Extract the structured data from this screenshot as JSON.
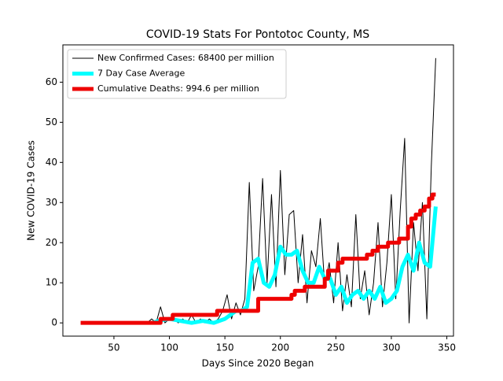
{
  "chart_data": {
    "type": "line",
    "title": "COVID-19 Stats For Pontotoc County, MS",
    "xlabel": "Days Since 2020 Began",
    "ylabel": "New COVID-19 Cases",
    "xlim": [
      4,
      356
    ],
    "ylim": [
      -3.3,
      69.3
    ],
    "xticks": [
      50,
      100,
      150,
      200,
      250,
      300,
      350
    ],
    "yticks": [
      0,
      10,
      20,
      30,
      40,
      50,
      60
    ],
    "legend": "upper left",
    "series": [
      {
        "name": "New Confirmed Cases: 68400 per million",
        "color": "#000000",
        "width": 1,
        "x": [
          80,
          84,
          88,
          92,
          96,
          100,
          104,
          108,
          112,
          116,
          120,
          124,
          128,
          132,
          136,
          140,
          144,
          148,
          152,
          156,
          160,
          164,
          168,
          172,
          176,
          180,
          184,
          188,
          192,
          196,
          200,
          204,
          208,
          212,
          216,
          220,
          224,
          228,
          232,
          236,
          240,
          244,
          248,
          252,
          256,
          260,
          264,
          268,
          272,
          276,
          280,
          284,
          288,
          292,
          296,
          300,
          304,
          308,
          312,
          316,
          320,
          324,
          328,
          332,
          336,
          340
        ],
        "values": [
          0,
          1,
          0,
          4,
          0,
          1,
          1,
          0,
          1,
          0,
          2,
          0,
          1,
          0,
          1,
          0,
          1,
          3,
          7,
          1,
          5,
          2,
          6,
          35,
          8,
          14,
          36,
          10,
          32,
          9,
          38,
          12,
          27,
          28,
          10,
          22,
          5,
          18,
          14,
          26,
          9,
          15,
          5,
          20,
          3,
          12,
          4,
          27,
          6,
          13,
          2,
          10,
          25,
          4,
          15,
          32,
          6,
          28,
          46,
          0,
          25,
          13,
          30,
          1,
          39,
          66
        ]
      },
      {
        "name": "7 Day Case Average",
        "color": "#00ffff",
        "width": 5,
        "x": [
          85,
          90,
          100,
          110,
          120,
          130,
          140,
          145,
          150,
          155,
          160,
          165,
          170,
          175,
          180,
          185,
          190,
          195,
          200,
          205,
          210,
          215,
          220,
          225,
          230,
          235,
          240,
          245,
          250,
          255,
          260,
          265,
          270,
          275,
          280,
          285,
          290,
          295,
          300,
          305,
          310,
          315,
          320,
          325,
          330,
          335,
          340
        ],
        "values": [
          0,
          0.5,
          1,
          0.5,
          0,
          0.5,
          0,
          0.5,
          1,
          2,
          3,
          3,
          4,
          15,
          16,
          10,
          9,
          12,
          19,
          17,
          17,
          18,
          13,
          10,
          10,
          14,
          11,
          11,
          7,
          9,
          5,
          7,
          8,
          6,
          8,
          6,
          9,
          5,
          6,
          8,
          14,
          17,
          13,
          20,
          15,
          14,
          29
        ]
      },
      {
        "name": "Cumulative Deaths: 994.6 per million",
        "color": "#ee0000",
        "width": 5,
        "x": [
          20,
          92,
          92,
          103,
          103,
          143,
          143,
          180,
          180,
          210,
          210,
          213,
          213,
          222,
          222,
          240,
          240,
          243,
          243,
          252,
          252,
          256,
          256,
          278,
          278,
          283,
          283,
          288,
          288,
          297,
          297,
          307,
          307,
          315,
          315,
          318,
          318,
          322,
          322,
          326,
          326,
          330,
          330,
          334,
          334,
          337,
          337,
          340
        ],
        "values": [
          0,
          0,
          1,
          1,
          2,
          2,
          3,
          3,
          6,
          6,
          7,
          7,
          8,
          8,
          9,
          9,
          11,
          11,
          13,
          13,
          15,
          15,
          16,
          16,
          17,
          17,
          18,
          18,
          19,
          19,
          20,
          20,
          21,
          21,
          24,
          24,
          26,
          26,
          27,
          27,
          28,
          28,
          29,
          29,
          31,
          31,
          32,
          32
        ]
      }
    ]
  }
}
